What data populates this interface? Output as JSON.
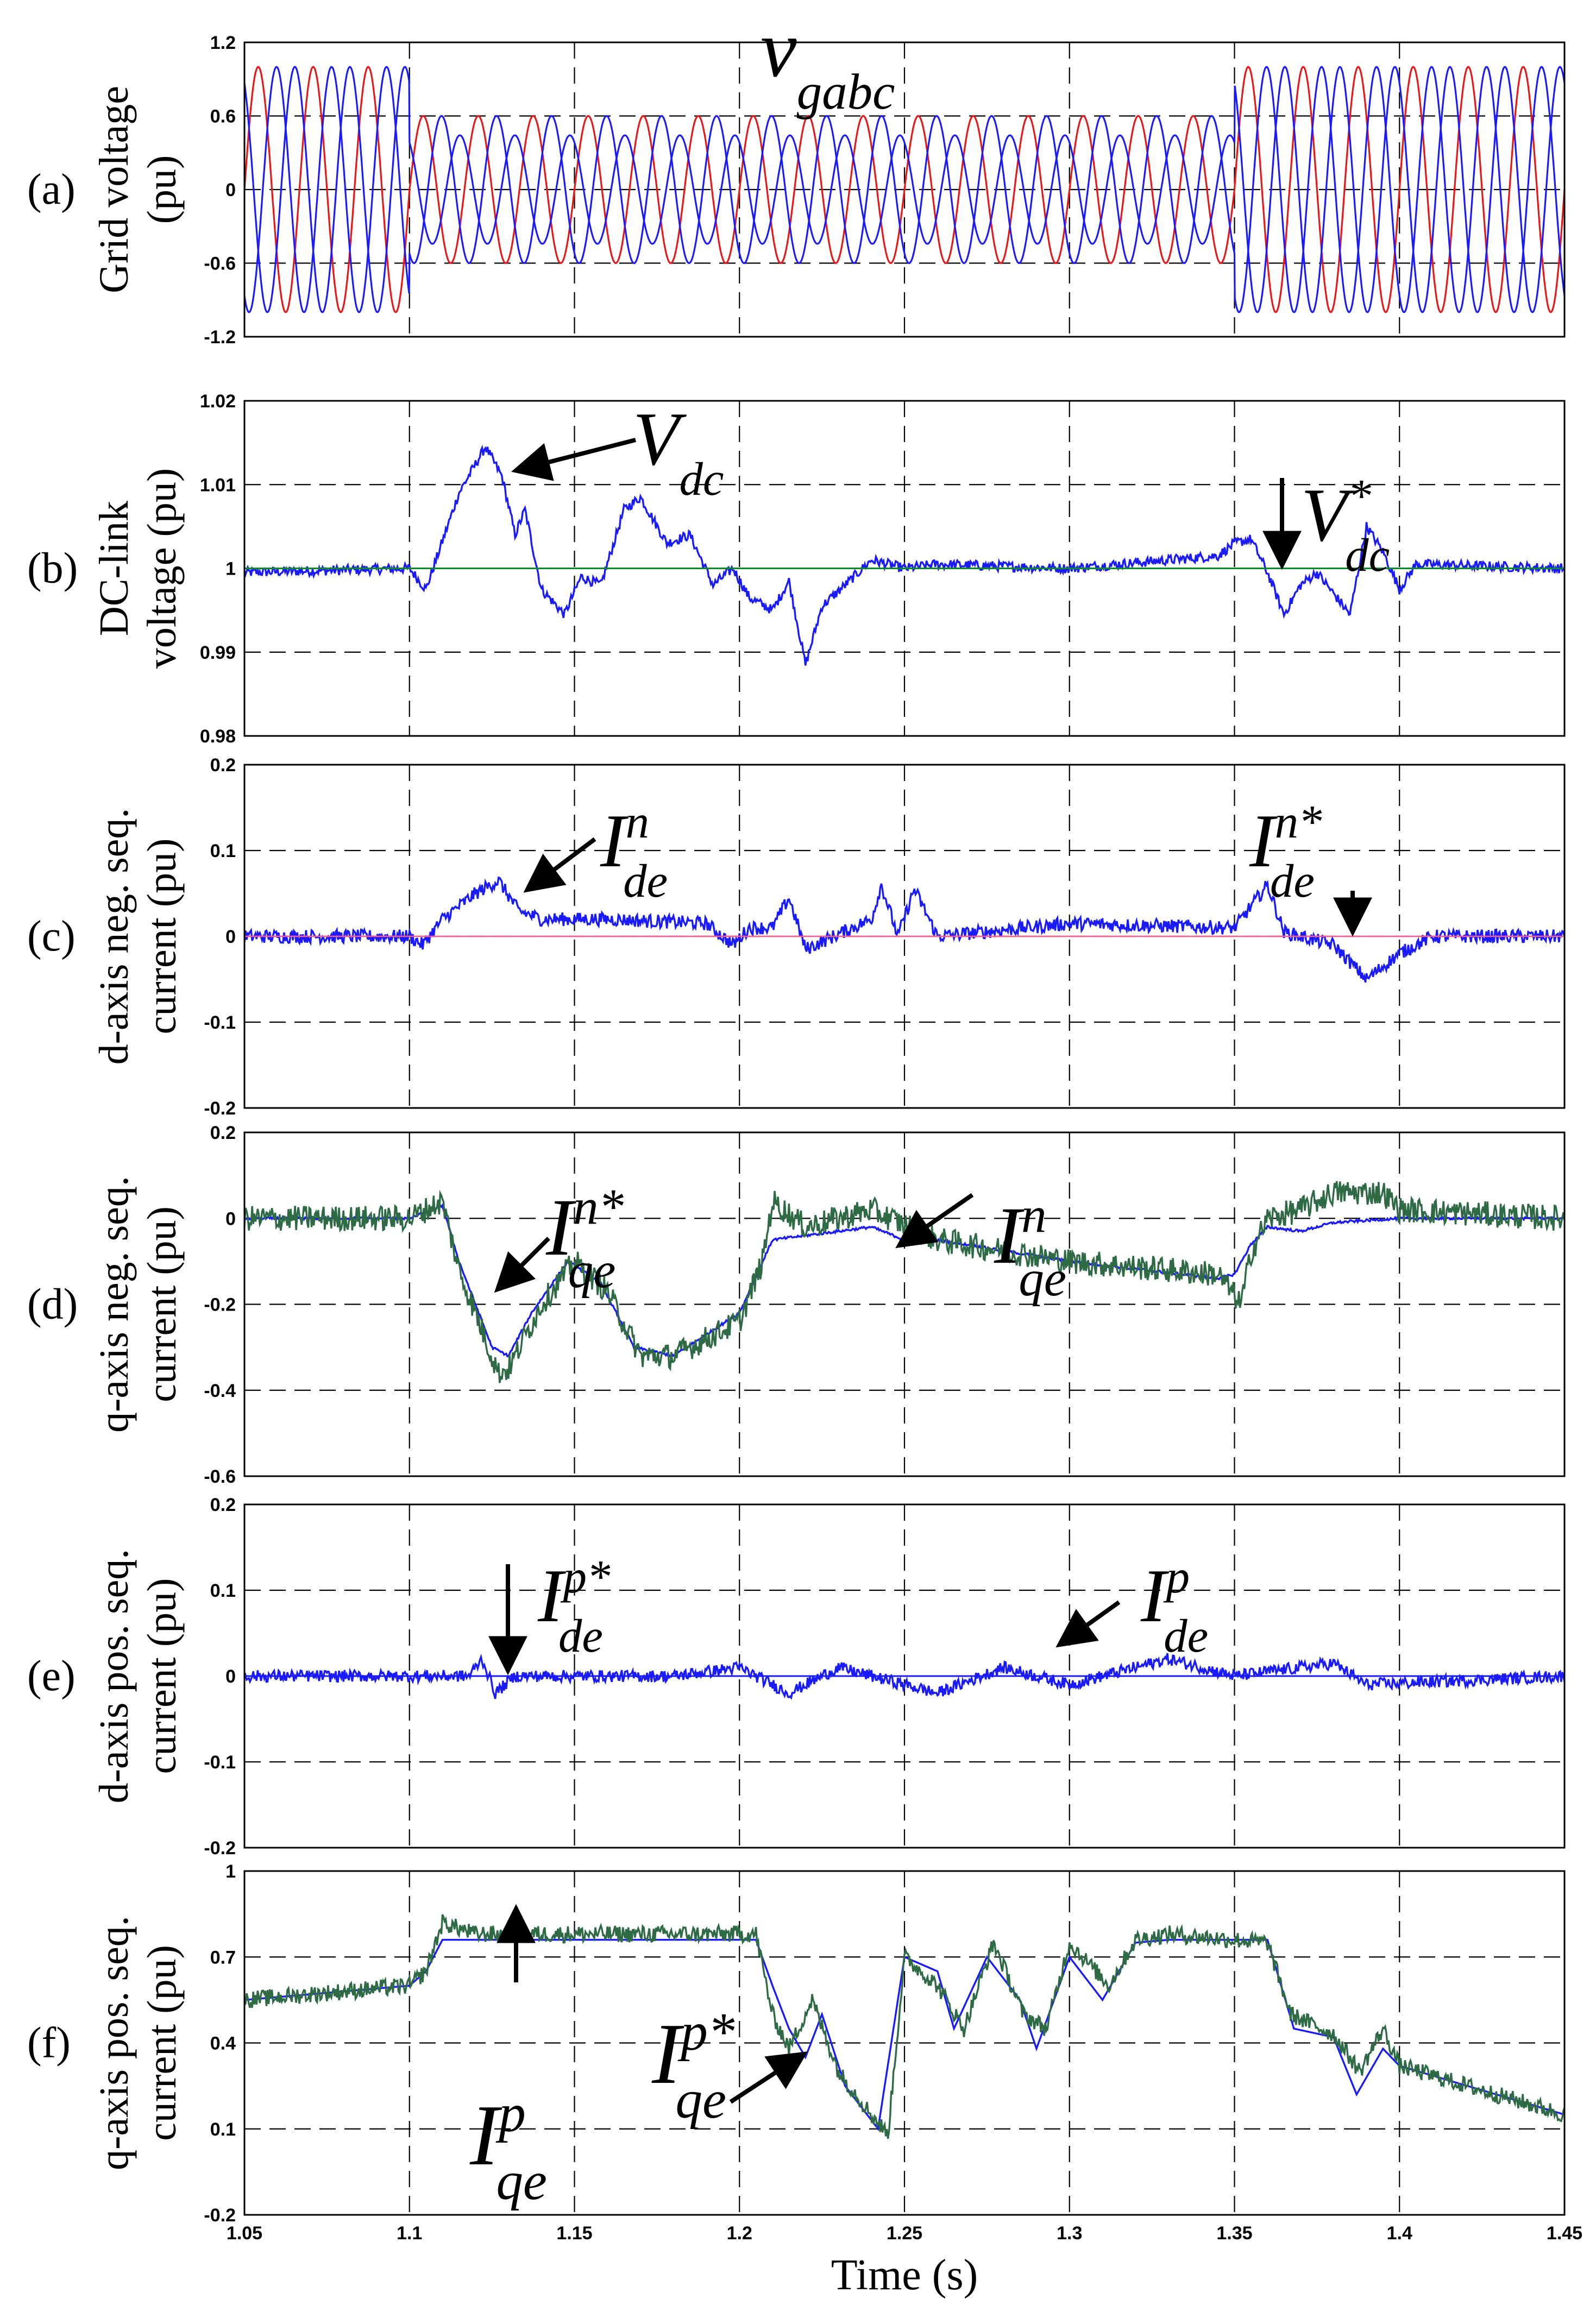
{
  "x_tick_labels": [
    "1.05",
    "1.1",
    "1.15",
    "1.2",
    "1.25",
    "1.3",
    "1.35",
    "1.4",
    "1.45"
  ],
  "x_axis_label": "Time (s)",
  "colors": {
    "blue": "#1a1aff",
    "red": "#e81818",
    "green": "#2e6b45",
    "ref_green": "#0a8a2a",
    "ref_pink": "#ff5a8a"
  },
  "chart_data": [
    {
      "id": "a",
      "type": "line",
      "panel_label": "(a)",
      "ylabel_lines": [
        "Grid voltage",
        "(pu)"
      ],
      "ylim": [
        -1.2,
        1.2
      ],
      "yticks": [
        -1.2,
        -0.6,
        0,
        0.6,
        1.2
      ],
      "ytick_labels": [
        "-1.2",
        "-0.6",
        "0",
        "0.6",
        "1.2"
      ],
      "xlim": [
        1.05,
        1.45
      ],
      "grid": true,
      "annotations": [
        {
          "base": "v",
          "sub": "gabc",
          "sup": ""
        }
      ],
      "series": [
        {
          "kind": "three_phase",
          "frequency_hz": 60,
          "amplitude_normal": 1.0,
          "amplitude_sag_red": 0.6,
          "amplitude_sag_blue": 0.25,
          "sag_start": 1.1,
          "sag_end": 1.35
        }
      ]
    },
    {
      "id": "b",
      "type": "line",
      "panel_label": "(b)",
      "ylabel_lines": [
        "DC-link",
        "voltage (pu)"
      ],
      "ylim": [
        0.98,
        1.02
      ],
      "yticks": [
        0.98,
        0.99,
        1,
        1.01,
        1.02
      ],
      "ytick_labels": [
        "0.98",
        "0.99",
        "1",
        "1.01",
        "1.02"
      ],
      "xlim": [
        1.05,
        1.45
      ],
      "grid": true,
      "annotations": [
        {
          "base": "V",
          "sub": "dc",
          "sup": ""
        },
        {
          "base": "V",
          "sub": "dc",
          "sup": "*"
        }
      ],
      "series": [
        {
          "role": "measured",
          "noise": 0.0006,
          "points": [
            [
              1.05,
              0.9995
            ],
            [
              1.1,
              1.0
            ],
            [
              1.105,
              0.9975
            ],
            [
              1.115,
              1.009
            ],
            [
              1.123,
              1.0145
            ],
            [
              1.128,
              1.011
            ],
            [
              1.132,
              1.004
            ],
            [
              1.135,
              1.007
            ],
            [
              1.14,
              0.9975
            ],
            [
              1.147,
              0.9945
            ],
            [
              1.152,
              0.999
            ],
            [
              1.158,
              0.998
            ],
            [
              1.165,
              1.007
            ],
            [
              1.17,
              1.0085
            ],
            [
              1.178,
              1.003
            ],
            [
              1.185,
              1.004
            ],
            [
              1.192,
              0.998
            ],
            [
              1.198,
              1.0
            ],
            [
              1.203,
              0.9965
            ],
            [
              1.21,
              0.995
            ],
            [
              1.215,
              0.9985
            ],
            [
              1.22,
              0.9885
            ],
            [
              1.225,
              0.9955
            ],
            [
              1.232,
              0.998
            ],
            [
              1.24,
              1.001
            ],
            [
              1.25,
              1.0
            ],
            [
              1.26,
              1.0005
            ],
            [
              1.3,
              1.0
            ],
            [
              1.345,
              1.0015
            ],
            [
              1.35,
              1.003
            ],
            [
              1.355,
              1.0035
            ],
            [
              1.36,
              0.9995
            ],
            [
              1.365,
              0.9945
            ],
            [
              1.37,
              0.998
            ],
            [
              1.375,
              0.9995
            ],
            [
              1.38,
              0.997
            ],
            [
              1.385,
              0.9945
            ],
            [
              1.39,
              1.005
            ],
            [
              1.395,
              1.002
            ],
            [
              1.4,
              0.9975
            ],
            [
              1.405,
              1.0005
            ],
            [
              1.45,
              1.0
            ]
          ]
        },
        {
          "role": "reference",
          "points": [
            [
              1.05,
              1.0
            ],
            [
              1.45,
              1.0
            ]
          ]
        }
      ]
    },
    {
      "id": "c",
      "type": "line",
      "panel_label": "(c)",
      "ylabel_lines": [
        "d-axis neg. seq.",
        "current (pu)"
      ],
      "ylim": [
        -0.2,
        0.2
      ],
      "yticks": [
        -0.2,
        -0.1,
        0,
        0.1,
        0.2
      ],
      "ytick_labels": [
        "-0.2",
        "-0.1",
        "0",
        "0.1",
        "0.2"
      ],
      "xlim": [
        1.05,
        1.45
      ],
      "grid": true,
      "annotations": [
        {
          "base": "I",
          "sub": "de",
          "sup": "n"
        },
        {
          "base": "I",
          "sub": "de",
          "sup": "n*"
        }
      ],
      "series": [
        {
          "role": "measured",
          "noise": 0.008,
          "points": [
            [
              1.05,
              0.0
            ],
            [
              1.1,
              0.0
            ],
            [
              1.104,
              -0.01
            ],
            [
              1.11,
              0.02
            ],
            [
              1.12,
              0.05
            ],
            [
              1.127,
              0.065
            ],
            [
              1.133,
              0.03
            ],
            [
              1.14,
              0.02
            ],
            [
              1.16,
              0.02
            ],
            [
              1.19,
              0.015
            ],
            [
              1.198,
              -0.01
            ],
            [
              1.203,
              0.01
            ],
            [
              1.21,
              0.01
            ],
            [
              1.215,
              0.045
            ],
            [
              1.22,
              -0.015
            ],
            [
              1.24,
              0.02
            ],
            [
              1.243,
              0.06
            ],
            [
              1.248,
              0.0
            ],
            [
              1.253,
              0.055
            ],
            [
              1.26,
              0.0
            ],
            [
              1.3,
              0.015
            ],
            [
              1.35,
              0.01
            ],
            [
              1.36,
              0.06
            ],
            [
              1.365,
              0.005
            ],
            [
              1.38,
              -0.01
            ],
            [
              1.39,
              -0.05
            ],
            [
              1.4,
              -0.02
            ],
            [
              1.41,
              0.0
            ],
            [
              1.45,
              0.0
            ]
          ]
        },
        {
          "role": "reference",
          "points": [
            [
              1.05,
              0.0
            ],
            [
              1.45,
              0.0
            ]
          ]
        }
      ]
    },
    {
      "id": "d",
      "type": "line",
      "panel_label": "(d)",
      "ylabel_lines": [
        "q-axis neg. seq.",
        "current (pu)"
      ],
      "ylim": [
        -0.6,
        0.2
      ],
      "yticks": [
        -0.6,
        -0.4,
        -0.2,
        0,
        0.2
      ],
      "ytick_labels": [
        "-0.6",
        "-0.4",
        "-0.2",
        "0",
        "0.2"
      ],
      "xlim": [
        1.05,
        1.45
      ],
      "grid": true,
      "annotations": [
        {
          "base": "I",
          "sub": "qe",
          "sup": "n*"
        },
        {
          "base": "I",
          "sub": "qe",
          "sup": "n"
        }
      ],
      "series": [
        {
          "role": "reference",
          "noise": 0.003,
          "points": [
            [
              1.05,
              0.0
            ],
            [
              1.1,
              0.0
            ],
            [
              1.11,
              0.03
            ],
            [
              1.115,
              -0.1
            ],
            [
              1.125,
              -0.3
            ],
            [
              1.13,
              -0.32
            ],
            [
              1.137,
              -0.22
            ],
            [
              1.148,
              -0.1
            ],
            [
              1.158,
              -0.15
            ],
            [
              1.168,
              -0.3
            ],
            [
              1.18,
              -0.32
            ],
            [
              1.2,
              -0.22
            ],
            [
              1.21,
              -0.05
            ],
            [
              1.23,
              -0.03
            ],
            [
              1.24,
              -0.02
            ],
            [
              1.25,
              -0.05
            ],
            [
              1.26,
              -0.05
            ],
            [
              1.3,
              -0.1
            ],
            [
              1.345,
              -0.14
            ],
            [
              1.35,
              -0.13
            ],
            [
              1.355,
              -0.06
            ],
            [
              1.36,
              -0.02
            ],
            [
              1.37,
              -0.03
            ],
            [
              1.38,
              -0.01
            ],
            [
              1.4,
              0.0
            ],
            [
              1.45,
              0.0
            ]
          ]
        },
        {
          "role": "measured",
          "noise": 0.03,
          "points": [
            [
              1.05,
              0.0
            ],
            [
              1.1,
              0.0
            ],
            [
              1.11,
              0.04
            ],
            [
              1.115,
              -0.12
            ],
            [
              1.127,
              -0.36
            ],
            [
              1.13,
              -0.35
            ],
            [
              1.14,
              -0.2
            ],
            [
              1.15,
              -0.1
            ],
            [
              1.16,
              -0.17
            ],
            [
              1.17,
              -0.32
            ],
            [
              1.18,
              -0.32
            ],
            [
              1.2,
              -0.24
            ],
            [
              1.207,
              -0.1
            ],
            [
              1.21,
              0.04
            ],
            [
              1.22,
              -0.02
            ],
            [
              1.24,
              0.02
            ],
            [
              1.26,
              -0.05
            ],
            [
              1.3,
              -0.1
            ],
            [
              1.345,
              -0.13
            ],
            [
              1.352,
              -0.2
            ],
            [
              1.355,
              -0.08
            ],
            [
              1.36,
              0.0
            ],
            [
              1.37,
              0.02
            ],
            [
              1.38,
              0.06
            ],
            [
              1.395,
              0.06
            ],
            [
              1.4,
              0.02
            ],
            [
              1.45,
              0.0
            ]
          ]
        }
      ]
    },
    {
      "id": "e",
      "type": "line",
      "panel_label": "(e)",
      "ylabel_lines": [
        "d-axis pos. seq.",
        "current (pu)"
      ],
      "ylim": [
        -0.2,
        0.2
      ],
      "yticks": [
        -0.2,
        -0.1,
        0,
        0.1,
        0.2
      ],
      "ytick_labels": [
        "-0.2",
        "-0.1",
        "0",
        "0.1",
        "0.2"
      ],
      "xlim": [
        1.05,
        1.45
      ],
      "grid": true,
      "annotations": [
        {
          "base": "I",
          "sub": "de",
          "sup": "p*"
        },
        {
          "base": "I",
          "sub": "de",
          "sup": "p"
        }
      ],
      "series": [
        {
          "role": "reference",
          "points": [
            [
              1.05,
              0.0
            ],
            [
              1.45,
              0.0
            ]
          ]
        },
        {
          "role": "measured",
          "noise": 0.007,
          "points": [
            [
              1.05,
              0.0
            ],
            [
              1.118,
              0.0
            ],
            [
              1.122,
              0.02
            ],
            [
              1.126,
              -0.02
            ],
            [
              1.132,
              0.0
            ],
            [
              1.18,
              0.0
            ],
            [
              1.2,
              0.01
            ],
            [
              1.215,
              -0.02
            ],
            [
              1.23,
              0.01
            ],
            [
              1.26,
              -0.02
            ],
            [
              1.28,
              0.01
            ],
            [
              1.3,
              -0.01
            ],
            [
              1.33,
              0.02
            ],
            [
              1.35,
              0.0
            ],
            [
              1.38,
              0.015
            ],
            [
              1.39,
              -0.01
            ],
            [
              1.45,
              0.0
            ]
          ]
        }
      ]
    },
    {
      "id": "f",
      "type": "line",
      "panel_label": "(f)",
      "ylabel_lines": [
        "q-axis pos. seq.",
        "current (pu)"
      ],
      "ylim": [
        -0.2,
        1.0
      ],
      "yticks": [
        -0.2,
        0.1,
        0.4,
        0.7,
        1.0
      ],
      "ytick_labels": [
        "-0.2",
        "0.1",
        "0.4",
        "0.7",
        "1"
      ],
      "xlim": [
        1.05,
        1.45
      ],
      "grid": true,
      "annotations": [
        {
          "base": "I",
          "sub": "qe",
          "sup": "p"
        },
        {
          "base": "I",
          "sub": "qe",
          "sup": "p*"
        }
      ],
      "series": [
        {
          "role": "reference",
          "noise": 0.0,
          "points": [
            [
              1.05,
              0.55
            ],
            [
              1.1,
              0.6
            ],
            [
              1.105,
              0.65
            ],
            [
              1.11,
              0.76
            ],
            [
              1.205,
              0.76
            ],
            [
              1.21,
              0.6
            ],
            [
              1.215,
              0.45
            ],
            [
              1.22,
              0.35
            ],
            [
              1.225,
              0.5
            ],
            [
              1.232,
              0.25
            ],
            [
              1.242,
              0.1
            ],
            [
              1.25,
              0.7
            ],
            [
              1.26,
              0.65
            ],
            [
              1.265,
              0.45
            ],
            [
              1.275,
              0.7
            ],
            [
              1.285,
              0.55
            ],
            [
              1.29,
              0.38
            ],
            [
              1.3,
              0.7
            ],
            [
              1.31,
              0.55
            ],
            [
              1.32,
              0.75
            ],
            [
              1.33,
              0.76
            ],
            [
              1.36,
              0.76
            ],
            [
              1.368,
              0.45
            ],
            [
              1.38,
              0.42
            ],
            [
              1.387,
              0.22
            ],
            [
              1.395,
              0.38
            ],
            [
              1.4,
              0.32
            ],
            [
              1.45,
              0.15
            ]
          ]
        },
        {
          "role": "measured",
          "noise": 0.03,
          "points": [
            [
              1.05,
              0.55
            ],
            [
              1.1,
              0.6
            ],
            [
              1.105,
              0.65
            ],
            [
              1.11,
              0.82
            ],
            [
              1.12,
              0.78
            ],
            [
              1.205,
              0.78
            ],
            [
              1.21,
              0.5
            ],
            [
              1.215,
              0.38
            ],
            [
              1.222,
              0.55
            ],
            [
              1.23,
              0.3
            ],
            [
              1.24,
              0.15
            ],
            [
              1.245,
              0.08
            ],
            [
              1.25,
              0.7
            ],
            [
              1.26,
              0.6
            ],
            [
              1.268,
              0.45
            ],
            [
              1.277,
              0.75
            ],
            [
              1.286,
              0.5
            ],
            [
              1.293,
              0.45
            ],
            [
              1.3,
              0.75
            ],
            [
              1.312,
              0.6
            ],
            [
              1.32,
              0.76
            ],
            [
              1.33,
              0.78
            ],
            [
              1.36,
              0.75
            ],
            [
              1.367,
              0.5
            ],
            [
              1.38,
              0.43
            ],
            [
              1.388,
              0.3
            ],
            [
              1.395,
              0.45
            ],
            [
              1.4,
              0.32
            ],
            [
              1.45,
              0.15
            ]
          ]
        }
      ]
    }
  ]
}
